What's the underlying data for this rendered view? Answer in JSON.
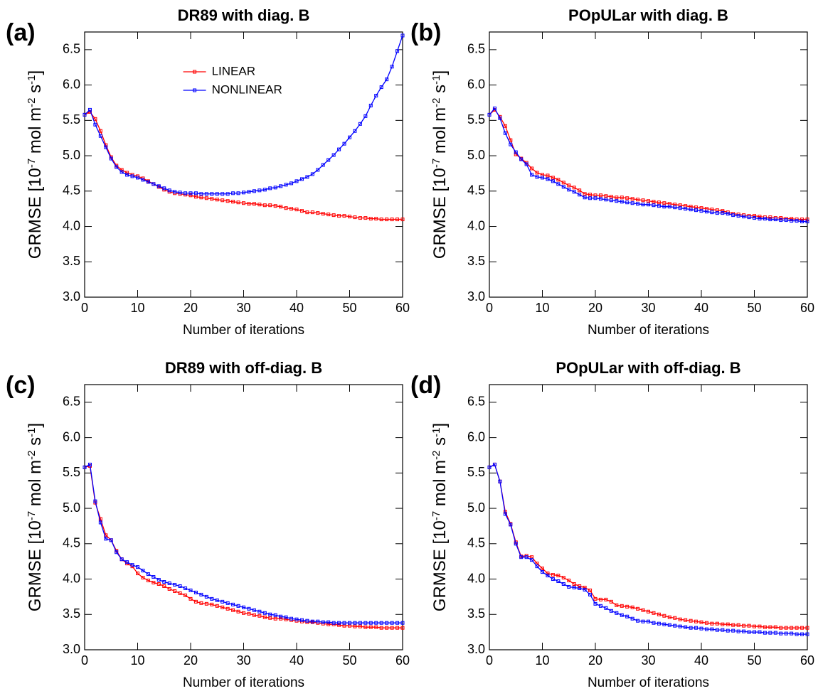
{
  "chart_data": [
    {
      "type": "line",
      "panel": "(a)",
      "title": "DR89 with diag. B",
      "xlabel": "Number of iterations",
      "ylabel": [
        "GRMSE [10",
        "-7",
        " mol m",
        "-2",
        " s",
        "-1",
        "]"
      ],
      "xlim": [
        0,
        60
      ],
      "ylim": [
        3.0,
        6.75
      ],
      "xticks": [
        0,
        10,
        20,
        30,
        40,
        50,
        60
      ],
      "yticks": [
        {
          "value": 3,
          "label": "3.0"
        },
        3.5,
        {
          "value": 4,
          "label": "4.0"
        },
        4.5,
        {
          "value": 5,
          "label": "5.0"
        },
        5.5,
        {
          "value": 6,
          "label": "6.0"
        },
        6.5
      ],
      "legend": "upper center",
      "x": [
        0,
        1,
        2,
        3,
        4,
        5,
        6,
        7,
        8,
        9,
        10,
        11,
        12,
        13,
        14,
        15,
        16,
        17,
        18,
        19,
        20,
        21,
        22,
        23,
        24,
        25,
        26,
        27,
        28,
        29,
        30,
        31,
        32,
        33,
        34,
        35,
        36,
        37,
        38,
        39,
        40,
        41,
        42,
        43,
        44,
        45,
        46,
        47,
        48,
        49,
        50,
        51,
        52,
        53,
        54,
        55,
        56,
        57,
        58,
        59,
        60
      ],
      "series": [
        {
          "name": "LINEAR",
          "color": "#ff0000",
          "values": [
            5.58,
            5.62,
            5.52,
            5.35,
            5.15,
            4.98,
            4.86,
            4.8,
            4.76,
            4.73,
            4.71,
            4.68,
            4.64,
            4.6,
            4.56,
            4.52,
            4.49,
            4.47,
            4.46,
            4.45,
            4.44,
            4.42,
            4.41,
            4.4,
            4.39,
            4.38,
            4.37,
            4.36,
            4.35,
            4.34,
            4.33,
            4.32,
            4.32,
            4.31,
            4.3,
            4.3,
            4.29,
            4.28,
            4.26,
            4.25,
            4.24,
            4.22,
            4.2,
            4.2,
            4.19,
            4.18,
            4.17,
            4.16,
            4.15,
            4.15,
            4.14,
            4.13,
            4.12,
            4.12,
            4.11,
            4.11,
            4.1,
            4.1,
            4.1,
            4.1,
            4.1
          ]
        },
        {
          "name": "NONLINEAR",
          "color": "#0000ff",
          "values": [
            5.58,
            5.65,
            5.44,
            5.28,
            5.12,
            4.96,
            4.84,
            4.77,
            4.73,
            4.71,
            4.69,
            4.66,
            4.63,
            4.6,
            4.57,
            4.54,
            4.51,
            4.49,
            4.48,
            4.47,
            4.47,
            4.47,
            4.46,
            4.46,
            4.46,
            4.46,
            4.46,
            4.46,
            4.47,
            4.47,
            4.48,
            4.49,
            4.5,
            4.51,
            4.52,
            4.54,
            4.55,
            4.57,
            4.59,
            4.61,
            4.64,
            4.67,
            4.7,
            4.74,
            4.8,
            4.87,
            4.94,
            5.01,
            5.09,
            5.17,
            5.26,
            5.35,
            5.45,
            5.56,
            5.71,
            5.85,
            5.97,
            6.08,
            6.26,
            6.48,
            6.7
          ]
        }
      ]
    },
    {
      "type": "line",
      "panel": "(b)",
      "title": "POpULar with diag. B",
      "xlabel": "Number of iterations",
      "ylabel": [
        "GRMSE [10",
        "-7",
        " mol m",
        "-2",
        " s",
        "-1",
        "]"
      ],
      "xlim": [
        0,
        60
      ],
      "ylim": [
        3.0,
        6.75
      ],
      "xticks": [
        0,
        10,
        20,
        30,
        40,
        50,
        60
      ],
      "yticks": [
        {
          "value": 3,
          "label": "3.0"
        },
        3.5,
        {
          "value": 4,
          "label": "4.0"
        },
        4.5,
        {
          "value": 5,
          "label": "5.0"
        },
        5.5,
        {
          "value": 6,
          "label": "6.0"
        },
        6.5
      ],
      "x": [
        0,
        1,
        2,
        3,
        4,
        5,
        6,
        7,
        8,
        9,
        10,
        11,
        12,
        13,
        14,
        15,
        16,
        17,
        18,
        19,
        20,
        21,
        22,
        23,
        24,
        25,
        26,
        27,
        28,
        29,
        30,
        31,
        32,
        33,
        34,
        35,
        36,
        37,
        38,
        39,
        40,
        41,
        42,
        43,
        44,
        45,
        46,
        47,
        48,
        49,
        50,
        51,
        52,
        53,
        54,
        55,
        56,
        57,
        58,
        59,
        60
      ],
      "series": [
        {
          "color": "#ff0000",
          "values": [
            5.58,
            5.65,
            5.55,
            5.42,
            5.22,
            5.02,
            4.96,
            4.9,
            4.82,
            4.76,
            4.73,
            4.72,
            4.69,
            4.66,
            4.62,
            4.58,
            4.55,
            4.51,
            4.46,
            4.45,
            4.44,
            4.44,
            4.43,
            4.42,
            4.41,
            4.41,
            4.4,
            4.39,
            4.38,
            4.37,
            4.36,
            4.35,
            4.34,
            4.33,
            4.32,
            4.31,
            4.3,
            4.29,
            4.28,
            4.27,
            4.26,
            4.25,
            4.24,
            4.23,
            4.22,
            4.2,
            4.18,
            4.17,
            4.16,
            4.15,
            4.15,
            4.14,
            4.13,
            4.13,
            4.12,
            4.12,
            4.11,
            4.11,
            4.1,
            4.1,
            4.1
          ]
        },
        {
          "color": "#0000ff",
          "values": [
            5.58,
            5.67,
            5.53,
            5.32,
            5.16,
            5.05,
            4.95,
            4.88,
            4.73,
            4.7,
            4.69,
            4.67,
            4.64,
            4.6,
            4.56,
            4.52,
            4.49,
            4.45,
            4.41,
            4.4,
            4.4,
            4.39,
            4.38,
            4.37,
            4.36,
            4.35,
            4.34,
            4.33,
            4.32,
            4.31,
            4.31,
            4.3,
            4.29,
            4.28,
            4.28,
            4.27,
            4.26,
            4.25,
            4.24,
            4.23,
            4.22,
            4.21,
            4.2,
            4.19,
            4.19,
            4.18,
            4.16,
            4.15,
            4.14,
            4.13,
            4.12,
            4.11,
            4.11,
            4.1,
            4.1,
            4.09,
            4.09,
            4.08,
            4.08,
            4.07,
            4.07
          ]
        }
      ]
    },
    {
      "type": "line",
      "panel": "(c)",
      "title": "DR89 with off-diag. B",
      "xlabel": "Number of iterations",
      "ylabel": [
        "GRMSE [10",
        "-7",
        " mol m",
        "-2",
        " s",
        "-1",
        "]"
      ],
      "xlim": [
        0,
        60
      ],
      "ylim": [
        3.0,
        6.75
      ],
      "xticks": [
        0,
        10,
        20,
        30,
        40,
        50,
        60
      ],
      "yticks": [
        {
          "value": 3,
          "label": "3.0"
        },
        3.5,
        {
          "value": 4,
          "label": "4.0"
        },
        4.5,
        {
          "value": 5,
          "label": "5.0"
        },
        5.5,
        {
          "value": 6,
          "label": "6.0"
        },
        6.5
      ],
      "x": [
        0,
        1,
        2,
        3,
        4,
        5,
        6,
        7,
        8,
        9,
        10,
        11,
        12,
        13,
        14,
        15,
        16,
        17,
        18,
        19,
        20,
        21,
        22,
        23,
        24,
        25,
        26,
        27,
        28,
        29,
        30,
        31,
        32,
        33,
        34,
        35,
        36,
        37,
        38,
        39,
        40,
        41,
        42,
        43,
        44,
        45,
        46,
        47,
        48,
        49,
        50,
        51,
        52,
        53,
        54,
        55,
        56,
        57,
        58,
        59,
        60
      ],
      "series": [
        {
          "color": "#ff0000",
          "values": [
            5.58,
            5.6,
            5.08,
            4.85,
            4.62,
            4.55,
            4.4,
            4.28,
            4.22,
            4.18,
            4.08,
            4.02,
            3.98,
            3.95,
            3.93,
            3.9,
            3.86,
            3.83,
            3.8,
            3.77,
            3.72,
            3.68,
            3.66,
            3.65,
            3.64,
            3.62,
            3.6,
            3.58,
            3.56,
            3.54,
            3.52,
            3.51,
            3.49,
            3.48,
            3.46,
            3.45,
            3.44,
            3.44,
            3.43,
            3.42,
            3.41,
            3.4,
            3.39,
            3.39,
            3.38,
            3.37,
            3.36,
            3.36,
            3.35,
            3.34,
            3.34,
            3.33,
            3.33,
            3.32,
            3.32,
            3.32,
            3.31,
            3.31,
            3.31,
            3.31,
            3.31
          ]
        },
        {
          "color": "#0000ff",
          "values": [
            5.58,
            5.62,
            5.1,
            4.8,
            4.57,
            4.55,
            4.38,
            4.28,
            4.24,
            4.2,
            4.17,
            4.12,
            4.07,
            4.03,
            3.99,
            3.96,
            3.94,
            3.92,
            3.9,
            3.87,
            3.84,
            3.81,
            3.78,
            3.75,
            3.72,
            3.7,
            3.68,
            3.66,
            3.64,
            3.62,
            3.6,
            3.58,
            3.56,
            3.54,
            3.52,
            3.5,
            3.49,
            3.47,
            3.46,
            3.44,
            3.43,
            3.42,
            3.41,
            3.4,
            3.4,
            3.39,
            3.39,
            3.38,
            3.38,
            3.38,
            3.38,
            3.38,
            3.38,
            3.38,
            3.38,
            3.38,
            3.38,
            3.38,
            3.38,
            3.38,
            3.38
          ]
        }
      ]
    },
    {
      "type": "line",
      "panel": "(d)",
      "title": "POpULar with off-diag. B",
      "xlabel": "Number of iterations",
      "ylabel": [
        "GRMSE [10",
        "-7",
        " mol m",
        "-2",
        " s",
        "-1",
        "]"
      ],
      "xlim": [
        0,
        60
      ],
      "ylim": [
        3.0,
        6.75
      ],
      "xticks": [
        0,
        10,
        20,
        30,
        40,
        50,
        60
      ],
      "yticks": [
        {
          "value": 3,
          "label": "3.0"
        },
        3.5,
        {
          "value": 4,
          "label": "4.0"
        },
        4.5,
        {
          "value": 5,
          "label": "5.0"
        },
        5.5,
        {
          "value": 6,
          "label": "6.0"
        },
        6.5
      ],
      "x": [
        0,
        1,
        2,
        3,
        4,
        5,
        6,
        7,
        8,
        9,
        10,
        11,
        12,
        13,
        14,
        15,
        16,
        17,
        18,
        19,
        20,
        21,
        22,
        23,
        24,
        25,
        26,
        27,
        28,
        29,
        30,
        31,
        32,
        33,
        34,
        35,
        36,
        37,
        38,
        39,
        40,
        41,
        42,
        43,
        44,
        45,
        46,
        47,
        48,
        49,
        50,
        51,
        52,
        53,
        54,
        55,
        56,
        57,
        58,
        59,
        60
      ],
      "series": [
        {
          "color": "#ff0000",
          "values": [
            5.58,
            5.62,
            5.38,
            4.95,
            4.78,
            4.52,
            4.32,
            4.33,
            4.31,
            4.22,
            4.15,
            4.08,
            4.06,
            4.05,
            4.02,
            3.98,
            3.93,
            3.9,
            3.88,
            3.84,
            3.72,
            3.71,
            3.71,
            3.68,
            3.63,
            3.62,
            3.61,
            3.6,
            3.58,
            3.56,
            3.54,
            3.52,
            3.5,
            3.48,
            3.46,
            3.45,
            3.43,
            3.42,
            3.41,
            3.4,
            3.39,
            3.38,
            3.37,
            3.37,
            3.36,
            3.36,
            3.35,
            3.35,
            3.34,
            3.34,
            3.33,
            3.33,
            3.32,
            3.32,
            3.32,
            3.31,
            3.31,
            3.31,
            3.31,
            3.31,
            3.31
          ]
        },
        {
          "color": "#0000ff",
          "values": [
            5.58,
            5.62,
            5.38,
            4.92,
            4.77,
            4.5,
            4.31,
            4.31,
            4.27,
            4.18,
            4.1,
            4.05,
            4.0,
            3.97,
            3.93,
            3.89,
            3.88,
            3.87,
            3.85,
            3.78,
            3.65,
            3.62,
            3.59,
            3.55,
            3.52,
            3.49,
            3.47,
            3.44,
            3.41,
            3.4,
            3.4,
            3.38,
            3.37,
            3.36,
            3.35,
            3.34,
            3.33,
            3.32,
            3.31,
            3.31,
            3.3,
            3.29,
            3.29,
            3.28,
            3.28,
            3.27,
            3.27,
            3.26,
            3.26,
            3.25,
            3.25,
            3.25,
            3.24,
            3.24,
            3.24,
            3.23,
            3.23,
            3.23,
            3.22,
            3.22,
            3.22
          ]
        }
      ]
    }
  ]
}
